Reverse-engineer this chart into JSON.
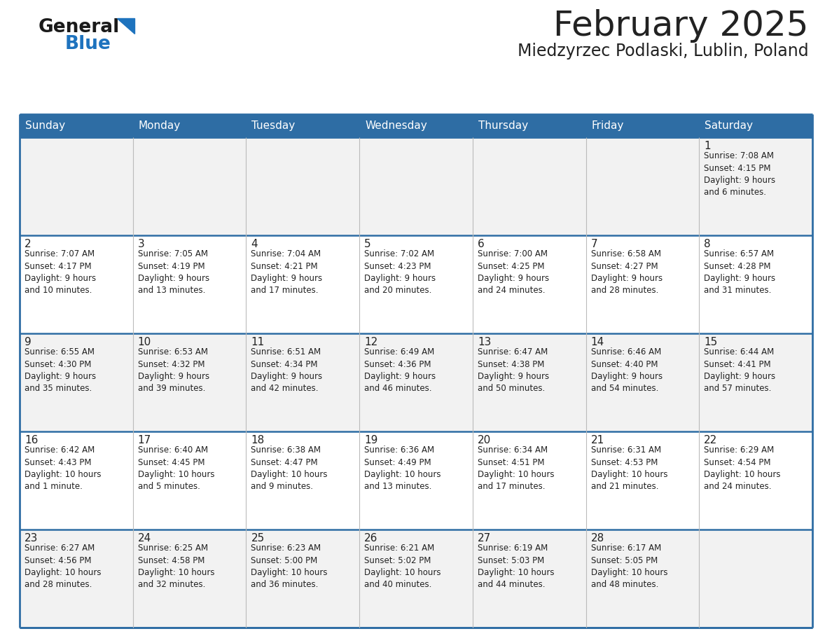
{
  "title": "February 2025",
  "subtitle": "Miedzyrzec Podlaski, Lublin, Poland",
  "header_bg": "#2E6DA4",
  "header_text": "#FFFFFF",
  "cell_bg": "#FFFFFF",
  "cell_bg_alt": "#F0F0F0",
  "border_color": "#2E6DA4",
  "divider_color": "#AAAAAA",
  "text_color": "#222222",
  "day_headers": [
    "Sunday",
    "Monday",
    "Tuesday",
    "Wednesday",
    "Thursday",
    "Friday",
    "Saturday"
  ],
  "weeks": [
    [
      {
        "day": "",
        "info": ""
      },
      {
        "day": "",
        "info": ""
      },
      {
        "day": "",
        "info": ""
      },
      {
        "day": "",
        "info": ""
      },
      {
        "day": "",
        "info": ""
      },
      {
        "day": "",
        "info": ""
      },
      {
        "day": "1",
        "info": "Sunrise: 7:08 AM\nSunset: 4:15 PM\nDaylight: 9 hours\nand 6 minutes."
      }
    ],
    [
      {
        "day": "2",
        "info": "Sunrise: 7:07 AM\nSunset: 4:17 PM\nDaylight: 9 hours\nand 10 minutes."
      },
      {
        "day": "3",
        "info": "Sunrise: 7:05 AM\nSunset: 4:19 PM\nDaylight: 9 hours\nand 13 minutes."
      },
      {
        "day": "4",
        "info": "Sunrise: 7:04 AM\nSunset: 4:21 PM\nDaylight: 9 hours\nand 17 minutes."
      },
      {
        "day": "5",
        "info": "Sunrise: 7:02 AM\nSunset: 4:23 PM\nDaylight: 9 hours\nand 20 minutes."
      },
      {
        "day": "6",
        "info": "Sunrise: 7:00 AM\nSunset: 4:25 PM\nDaylight: 9 hours\nand 24 minutes."
      },
      {
        "day": "7",
        "info": "Sunrise: 6:58 AM\nSunset: 4:27 PM\nDaylight: 9 hours\nand 28 minutes."
      },
      {
        "day": "8",
        "info": "Sunrise: 6:57 AM\nSunset: 4:28 PM\nDaylight: 9 hours\nand 31 minutes."
      }
    ],
    [
      {
        "day": "9",
        "info": "Sunrise: 6:55 AM\nSunset: 4:30 PM\nDaylight: 9 hours\nand 35 minutes."
      },
      {
        "day": "10",
        "info": "Sunrise: 6:53 AM\nSunset: 4:32 PM\nDaylight: 9 hours\nand 39 minutes."
      },
      {
        "day": "11",
        "info": "Sunrise: 6:51 AM\nSunset: 4:34 PM\nDaylight: 9 hours\nand 42 minutes."
      },
      {
        "day": "12",
        "info": "Sunrise: 6:49 AM\nSunset: 4:36 PM\nDaylight: 9 hours\nand 46 minutes."
      },
      {
        "day": "13",
        "info": "Sunrise: 6:47 AM\nSunset: 4:38 PM\nDaylight: 9 hours\nand 50 minutes."
      },
      {
        "day": "14",
        "info": "Sunrise: 6:46 AM\nSunset: 4:40 PM\nDaylight: 9 hours\nand 54 minutes."
      },
      {
        "day": "15",
        "info": "Sunrise: 6:44 AM\nSunset: 4:41 PM\nDaylight: 9 hours\nand 57 minutes."
      }
    ],
    [
      {
        "day": "16",
        "info": "Sunrise: 6:42 AM\nSunset: 4:43 PM\nDaylight: 10 hours\nand 1 minute."
      },
      {
        "day": "17",
        "info": "Sunrise: 6:40 AM\nSunset: 4:45 PM\nDaylight: 10 hours\nand 5 minutes."
      },
      {
        "day": "18",
        "info": "Sunrise: 6:38 AM\nSunset: 4:47 PM\nDaylight: 10 hours\nand 9 minutes."
      },
      {
        "day": "19",
        "info": "Sunrise: 6:36 AM\nSunset: 4:49 PM\nDaylight: 10 hours\nand 13 minutes."
      },
      {
        "day": "20",
        "info": "Sunrise: 6:34 AM\nSunset: 4:51 PM\nDaylight: 10 hours\nand 17 minutes."
      },
      {
        "day": "21",
        "info": "Sunrise: 6:31 AM\nSunset: 4:53 PM\nDaylight: 10 hours\nand 21 minutes."
      },
      {
        "day": "22",
        "info": "Sunrise: 6:29 AM\nSunset: 4:54 PM\nDaylight: 10 hours\nand 24 minutes."
      }
    ],
    [
      {
        "day": "23",
        "info": "Sunrise: 6:27 AM\nSunset: 4:56 PM\nDaylight: 10 hours\nand 28 minutes."
      },
      {
        "day": "24",
        "info": "Sunrise: 6:25 AM\nSunset: 4:58 PM\nDaylight: 10 hours\nand 32 minutes."
      },
      {
        "day": "25",
        "info": "Sunrise: 6:23 AM\nSunset: 5:00 PM\nDaylight: 10 hours\nand 36 minutes."
      },
      {
        "day": "26",
        "info": "Sunrise: 6:21 AM\nSunset: 5:02 PM\nDaylight: 10 hours\nand 40 minutes."
      },
      {
        "day": "27",
        "info": "Sunrise: 6:19 AM\nSunset: 5:03 PM\nDaylight: 10 hours\nand 44 minutes."
      },
      {
        "day": "28",
        "info": "Sunrise: 6:17 AM\nSunset: 5:05 PM\nDaylight: 10 hours\nand 48 minutes."
      },
      {
        "day": "",
        "info": ""
      }
    ]
  ],
  "logo_general_color": "#1a1a1a",
  "logo_blue_color": "#1e73be",
  "logo_triangle_color": "#1e73be",
  "title_fontsize": 36,
  "subtitle_fontsize": 17,
  "header_fontsize": 11,
  "day_num_fontsize": 11,
  "info_fontsize": 8.5
}
